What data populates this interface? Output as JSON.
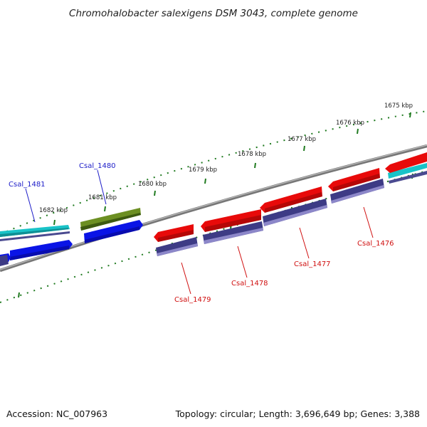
{
  "title": "Chromohalobacter salexigens DSM 3043, complete genome",
  "footer": {
    "accession": "Accession: NC_007963",
    "summary": "Topology: circular; Length: 3,696,649 bp; Genes: 3,388"
  },
  "scale_labels": [
    "1675 kbp",
    "1676 kbp",
    "1677 kbp",
    "1678 kbp",
    "1679 kbp",
    "1680 kbp",
    "1681 kbp",
    "1682 kbp"
  ],
  "gene_labels": [
    {
      "name": "Csal_1481",
      "strand": "forward"
    },
    {
      "name": "Csal_1480",
      "strand": "forward"
    },
    {
      "name": "Csal_1479",
      "strand": "reverse"
    },
    {
      "name": "Csal_1478",
      "strand": "reverse"
    },
    {
      "name": "Csal_1477",
      "strand": "reverse"
    },
    {
      "name": "Csal_1476",
      "strand": "reverse"
    }
  ],
  "colors": {
    "forward_gene": "#0a14e6",
    "reverse_gene": "#e80a0a",
    "cds": "#3d3b85",
    "olive_feature": "#5e7f20",
    "cyan_feature": "#19c3c8",
    "backbone": "#8a8a8a",
    "ticks": "#1f7a1f",
    "forward_label": "#1c1cc8",
    "reverse_label": "#d01010"
  }
}
